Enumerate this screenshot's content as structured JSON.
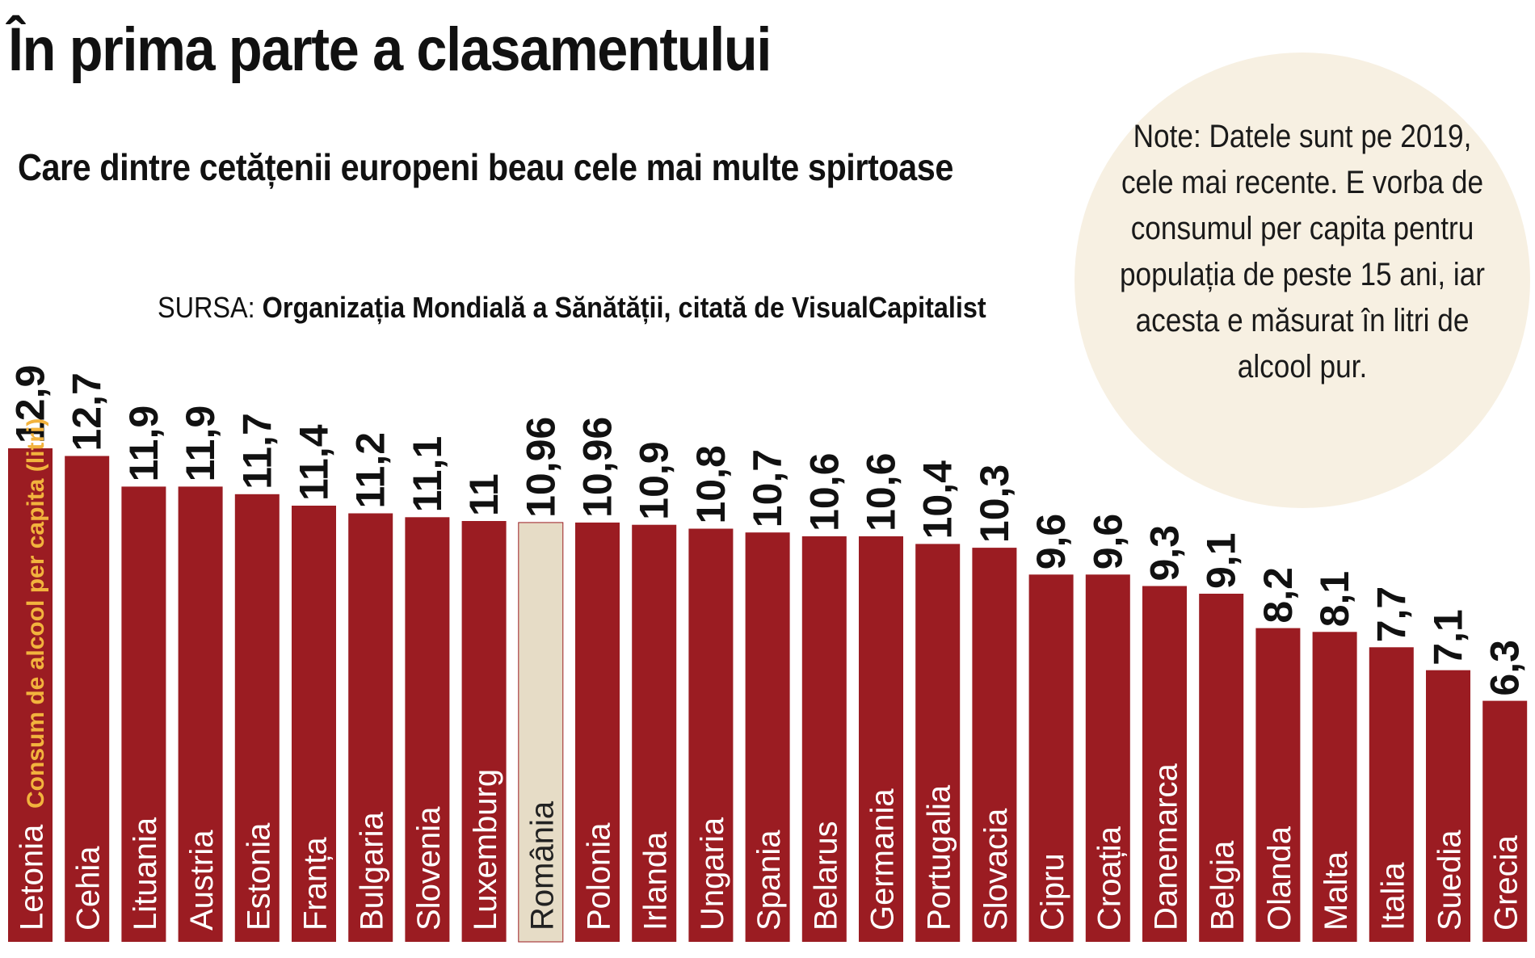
{
  "title": "În prima parte a clasamentului",
  "subtitle": "Care dintre cetățenii europeni beau cele mai multe spirtoase",
  "source": {
    "prefix": "SURSA: ",
    "name": "Organizația Mondială a Sănătății, citată de VisualCapitalist"
  },
  "note": "Note: Datele sunt pe 2019, cele mai recente. E vorba de consumul per capita pentru populația de peste 15 ani, iar acesta e măsurat în litri de alcool pur.",
  "colors": {
    "bar": "#9b1c22",
    "highlight_bar": "#e6dcc6",
    "ylabel": "#f2b33d",
    "note_bg": "#f7f0e2"
  },
  "chart_data": {
    "type": "bar",
    "ylabel": "Consum de alcool per capita (litri)",
    "categories": [
      "Letonia",
      "Cehia",
      "Lituania",
      "Austria",
      "Estonia",
      "Franța",
      "Bulgaria",
      "Slovenia",
      "Luxemburg",
      "România",
      "Polonia",
      "Irlanda",
      "Ungaria",
      "Spania",
      "Belarus",
      "Germania",
      "Portugalia",
      "Slovacia",
      "Cipru",
      "Croația",
      "Danemarca",
      "Belgia",
      "Olanda",
      "Malta",
      "Italia",
      "Suedia",
      "Grecia"
    ],
    "values": [
      12.9,
      12.7,
      11.9,
      11.9,
      11.7,
      11.4,
      11.2,
      11.1,
      11,
      10.96,
      10.96,
      10.9,
      10.8,
      10.7,
      10.6,
      10.6,
      10.4,
      10.3,
      9.6,
      9.6,
      9.3,
      9.1,
      8.2,
      8.1,
      7.7,
      7.1,
      6.3
    ],
    "value_labels": [
      "12,9",
      "12,7",
      "11,9",
      "11,9",
      "11,7",
      "11,4",
      "11,2",
      "11,1",
      "11",
      "10,96",
      "10,96",
      "10,9",
      "10,8",
      "10,7",
      "10,6",
      "10,6",
      "10,4",
      "10,3",
      "9,6",
      "9,6",
      "9,3",
      "9,1",
      "8,2",
      "8,1",
      "7,7",
      "7,1",
      "6,3"
    ],
    "highlight": "România",
    "ylim": [
      0,
      12.9
    ],
    "grid": false,
    "legend": "none"
  }
}
